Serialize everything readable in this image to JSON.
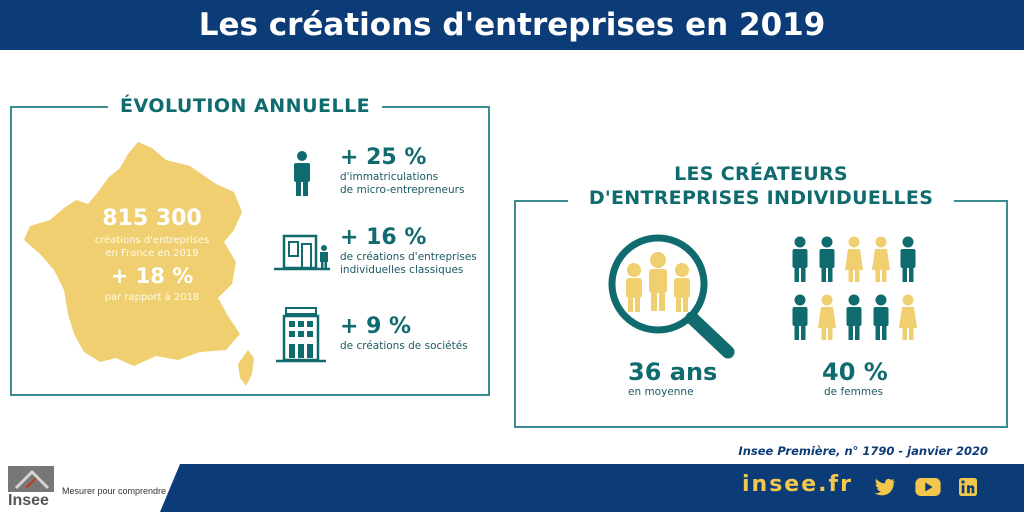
{
  "header": {
    "title": "Les créations d'entreprises en 2019"
  },
  "evolution": {
    "title": "ÉVOLUTION ANNUELLE",
    "total_value": "815 300",
    "total_desc_1": "créations d'entreprises",
    "total_desc_2": "en France en 2019",
    "change_value": "+ 18 %",
    "change_desc": "par rapport à 2018",
    "stats": [
      {
        "value": "+ 25 %",
        "desc_1": "d'immatriculations",
        "desc_2": "de micro-entrepreneurs",
        "icon": "person-icon"
      },
      {
        "value": "+ 16 %",
        "desc_1": "de créations d'entreprises",
        "desc_2": "individuelles classiques",
        "icon": "shop-icon"
      },
      {
        "value": "+ 9 %",
        "desc_1": "de créations de sociétés",
        "desc_2": "",
        "icon": "building-icon"
      }
    ]
  },
  "creators": {
    "title_1": "LES CRÉATEURS",
    "title_2": "D'ENTREPRISES INDIVIDUELLES",
    "age_value": "36 ans",
    "age_desc": "en moyenne",
    "women_value": "40 %",
    "women_desc": "de femmes",
    "women_share": 0.4,
    "people_grid": [
      [
        "man",
        "man",
        "woman",
        "woman",
        "man"
      ],
      [
        "man",
        "woman",
        "man",
        "man",
        "woman"
      ]
    ]
  },
  "source": "Insee Première, n° 1790 - janvier 2020",
  "footer": {
    "logo_text": "Insee",
    "slogan": "Mesurer pour comprendre",
    "site": "insee.fr",
    "social_icons": [
      "twitter-icon",
      "youtube-icon",
      "linkedin-icon"
    ]
  },
  "colors": {
    "navy": "#0c3c78",
    "teal": "#0f6b6e",
    "yellow": "#efcf6f",
    "gold": "#f1c84b"
  }
}
